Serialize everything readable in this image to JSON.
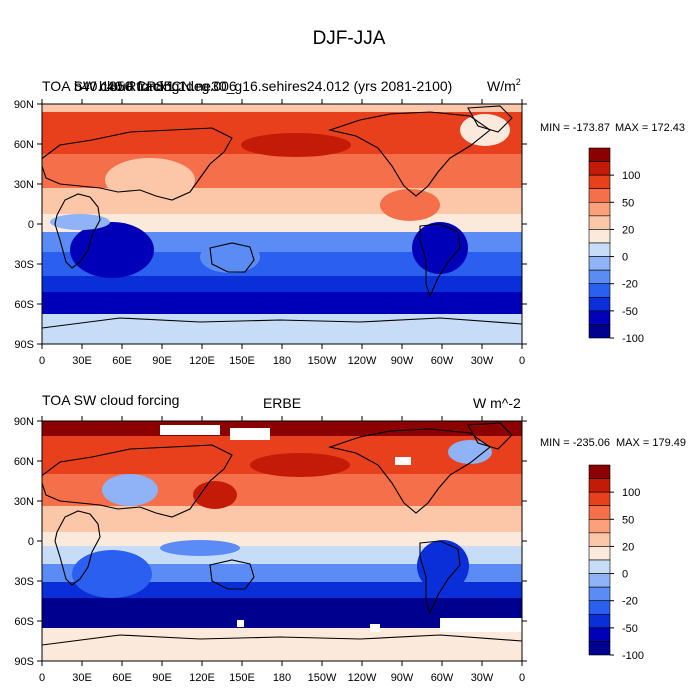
{
  "figure_title": "DJF-JJA",
  "palette": [
    "#00008f",
    "#0000b8",
    "#0a2fd8",
    "#2a5fef",
    "#5b8cf5",
    "#8fb3f6",
    "#c7dcf7",
    "#fbe9dc",
    "#fcc7a8",
    "#fba07a",
    "#f5704a",
    "#e8401d",
    "#c41a08",
    "#8b0000"
  ],
  "colorbar_labels": [
    "100",
    "50",
    "20",
    "0",
    "-20",
    "-50",
    "-100"
  ],
  "lon_labels": [
    "0",
    "30E",
    "60E",
    "90E",
    "120E",
    "150E",
    "180",
    "150W",
    "120W",
    "90W",
    "60W",
    "30W",
    "0"
  ],
  "lat_labels": [
    "90N",
    "60N",
    "30N",
    "0",
    "30S",
    "60S",
    "90S"
  ],
  "panels": [
    {
      "left_title": "TOA SW cloud forcing",
      "center_title": "b40.1850.track1.1deg.006",
      "left_title_overprint": "b40.RCP85CN.ne30_g16.sehires24.012 (yrs 2081-2100)",
      "units_base": "W/m",
      "units_sup": "2",
      "min_label": "MIN = -173.87",
      "max_label": "MAX = 172.43",
      "min_value": -173.87,
      "max_value": 172.43
    },
    {
      "left_title": "TOA SW cloud forcing",
      "center_title": "ERBE",
      "units_base": "W m^-2",
      "units_sup": "",
      "min_label": "MIN = -235.06",
      "max_label": "MAX = 179.49",
      "min_value": -235.06,
      "max_value": 179.49
    }
  ]
}
